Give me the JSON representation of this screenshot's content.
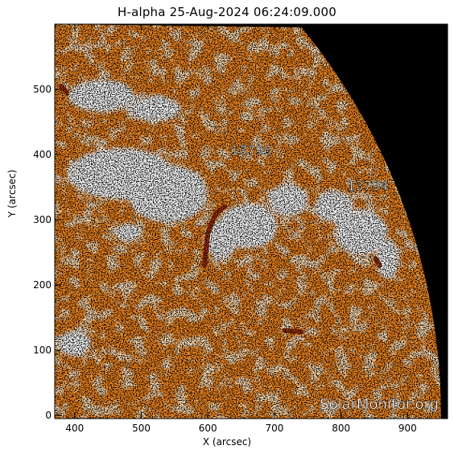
{
  "figure": {
    "title": "H-alpha 25-Aug-2024 06:24:09.000",
    "xlabel": "X (arcsec)",
    "ylabel": "Y (arcsec)",
    "watermark": "SolarMonitor.org"
  },
  "axes": {
    "x_range": [
      370,
      960
    ],
    "y_range": [
      -5,
      600
    ],
    "x_ticks": [
      400,
      500,
      600,
      700,
      800,
      900
    ],
    "y_ticks": [
      0,
      100,
      200,
      300,
      400,
      500
    ]
  },
  "regions": [
    {
      "label": "13793",
      "x": 665,
      "y": 400
    },
    {
      "label": "13794",
      "x": 840,
      "y": 345
    }
  ],
  "colors": {
    "background": "#ffffff",
    "space": "#000000",
    "disk": "#f2861e",
    "plage": "#ffffff",
    "filament": "#a0300a"
  }
}
